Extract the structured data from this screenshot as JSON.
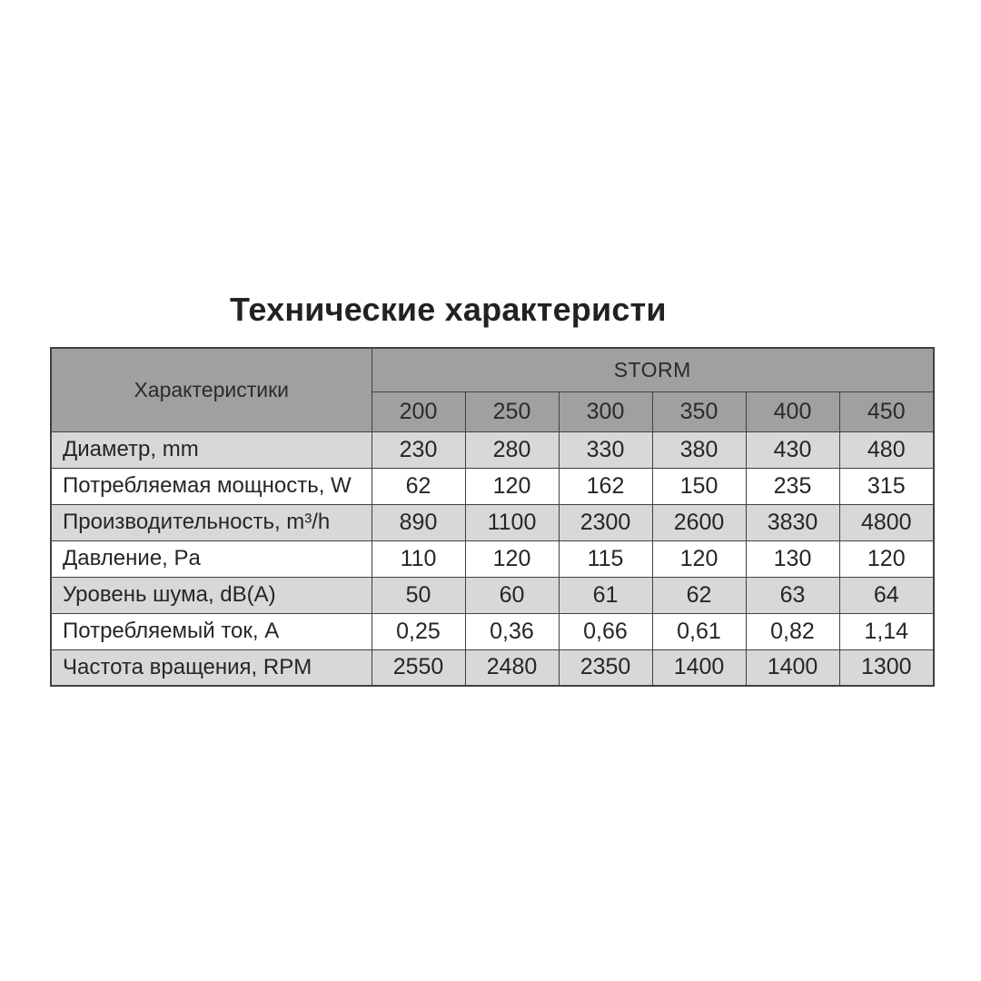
{
  "title": "Технические характеристи",
  "table": {
    "header": {
      "characteristics_label": "Характеристики",
      "group_label": "STORM",
      "models": [
        "200",
        "250",
        "300",
        "350",
        "400",
        "450"
      ]
    },
    "rows": [
      {
        "label": "Диаметр, mm",
        "values": [
          "230",
          "280",
          "330",
          "380",
          "430",
          "480"
        ]
      },
      {
        "label": "Потребляемая мощность, W",
        "values": [
          "62",
          "120",
          "162",
          "150",
          "235",
          "315"
        ]
      },
      {
        "label": "Производительность, m³/h",
        "values": [
          "890",
          "1100",
          "2300",
          "2600",
          "3830",
          "4800"
        ]
      },
      {
        "label": "Давление, Pa",
        "values": [
          "110",
          "120",
          "115",
          "120",
          "130",
          "120"
        ]
      },
      {
        "label": "Уровень шума, dB(A)",
        "values": [
          "50",
          "60",
          "61",
          "62",
          "63",
          "64"
        ]
      },
      {
        "label": "Потребляемый ток, A",
        "values": [
          "0,25",
          "0,36",
          "0,66",
          "0,61",
          "0,82",
          "1,14"
        ]
      },
      {
        "label": "Частота вращения, RPM",
        "values": [
          "2550",
          "2480",
          "2350",
          "1400",
          "1400",
          "1300"
        ]
      }
    ],
    "colors": {
      "header_bg": "#a0a0a0",
      "row_alt_bg": "#d8d8d8",
      "row_bg": "#ffffff",
      "border": "#414141",
      "text": "#262626"
    }
  }
}
